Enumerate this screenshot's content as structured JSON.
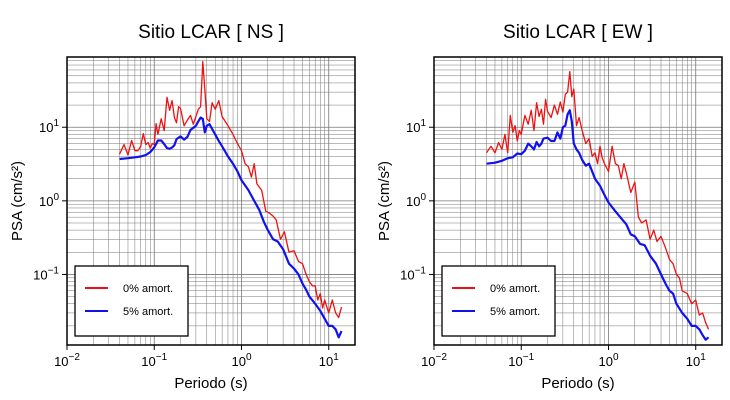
{
  "chart_data": [
    {
      "type": "line",
      "title": "Sitio LCAR [ NS ]",
      "xlabel": "Periodo (s)",
      "ylabel": "PSA (cm/s²)",
      "x_scale": "log",
      "y_scale": "log",
      "xlim": [
        0.01,
        20
      ],
      "ylim": [
        0.011,
        90
      ],
      "x_ticks": [
        {
          "value": 0.01,
          "base": "10",
          "exp": "−2"
        },
        {
          "value": 0.1,
          "base": "10",
          "exp": "−1"
        },
        {
          "value": 1,
          "base": "10",
          "exp": "0"
        },
        {
          "value": 10,
          "base": "10",
          "exp": "1"
        }
      ],
      "y_ticks": [
        {
          "value": 0.1,
          "base": "10",
          "exp": "−1"
        },
        {
          "value": 1,
          "base": "10",
          "exp": "0"
        },
        {
          "value": 10,
          "base": "10",
          "exp": "1"
        }
      ],
      "grid": true,
      "legend_position": "bottom-left",
      "series": [
        {
          "name": "0% amort.",
          "color": "#ee1111",
          "x": [
            0.04,
            0.045,
            0.05,
            0.055,
            0.06,
            0.065,
            0.07,
            0.075,
            0.08,
            0.085,
            0.09,
            0.095,
            0.1,
            0.105,
            0.11,
            0.12,
            0.13,
            0.14,
            0.15,
            0.16,
            0.17,
            0.18,
            0.19,
            0.2,
            0.22,
            0.24,
            0.26,
            0.28,
            0.3,
            0.32,
            0.34,
            0.36,
            0.38,
            0.4,
            0.43,
            0.46,
            0.5,
            0.55,
            0.6,
            0.65,
            0.7,
            0.8,
            0.9,
            1.0,
            1.1,
            1.2,
            1.3,
            1.4,
            1.5,
            1.7,
            1.9,
            2.1,
            2.3,
            2.5,
            2.8,
            3.1,
            3.5,
            4.0,
            4.5,
            5.0,
            5.5,
            6.0,
            6.5,
            7.0,
            7.5,
            8.0,
            8.5,
            9.0,
            10,
            11,
            12,
            13,
            14
          ],
          "y": [
            4.3,
            5.8,
            4.2,
            6.6,
            4.8,
            4.8,
            5.5,
            8.2,
            5.8,
            6.2,
            5.2,
            6.0,
            5.8,
            11.2,
            8.0,
            13.0,
            9.0,
            25.5,
            17.0,
            23.0,
            13.5,
            11.5,
            19.0,
            18.0,
            10.5,
            12.5,
            14.5,
            11.0,
            14.0,
            17.5,
            19.0,
            78.0,
            33.0,
            13.0,
            12.0,
            21.5,
            17.5,
            23.0,
            14.0,
            12.0,
            10.5,
            8.0,
            6.0,
            4.8,
            3.2,
            2.9,
            2.1,
            3.2,
            1.7,
            1.4,
            0.72,
            0.68,
            0.62,
            0.55,
            0.3,
            0.38,
            0.2,
            0.21,
            0.15,
            0.14,
            0.1,
            0.08,
            0.07,
            0.07,
            0.045,
            0.055,
            0.035,
            0.045,
            0.03,
            0.045,
            0.03,
            0.026,
            0.036
          ]
        },
        {
          "name": "5% amort.",
          "color": "#1111ee",
          "x": [
            0.04,
            0.05,
            0.06,
            0.07,
            0.08,
            0.09,
            0.1,
            0.11,
            0.12,
            0.13,
            0.14,
            0.15,
            0.16,
            0.17,
            0.18,
            0.2,
            0.22,
            0.24,
            0.26,
            0.28,
            0.3,
            0.32,
            0.34,
            0.36,
            0.38,
            0.4,
            0.43,
            0.46,
            0.5,
            0.55,
            0.6,
            0.7,
            0.8,
            0.9,
            1.0,
            1.2,
            1.4,
            1.6,
            1.8,
            2.0,
            2.3,
            2.6,
            3.0,
            3.5,
            4.0,
            4.5,
            5.0,
            5.5,
            6.0,
            7.0,
            8.0,
            9.0,
            10,
            11,
            12,
            13,
            14
          ],
          "y": [
            3.7,
            3.8,
            3.9,
            4.0,
            4.2,
            4.6,
            5.3,
            6.6,
            6.6,
            5.9,
            5.2,
            5.1,
            5.3,
            5.7,
            6.9,
            7.5,
            6.8,
            7.4,
            9.2,
            9.8,
            10.5,
            12.0,
            13.5,
            13.0,
            8.5,
            10.5,
            11.0,
            9.5,
            8.0,
            6.5,
            5.5,
            4.0,
            3.2,
            2.5,
            1.9,
            1.4,
            1.0,
            0.75,
            0.52,
            0.4,
            0.3,
            0.28,
            0.22,
            0.14,
            0.12,
            0.1,
            0.075,
            0.062,
            0.05,
            0.04,
            0.032,
            0.025,
            0.02,
            0.02,
            0.018,
            0.014,
            0.017
          ]
        }
      ]
    },
    {
      "type": "line",
      "title": "Sitio LCAR [ EW ]",
      "xlabel": "Periodo (s)",
      "ylabel": "PSA (cm/s²)",
      "x_scale": "log",
      "y_scale": "log",
      "xlim": [
        0.01,
        20
      ],
      "ylim": [
        0.011,
        90
      ],
      "x_ticks": [
        {
          "value": 0.01,
          "base": "10",
          "exp": "−2"
        },
        {
          "value": 0.1,
          "base": "10",
          "exp": "−1"
        },
        {
          "value": 1,
          "base": "10",
          "exp": "0"
        },
        {
          "value": 10,
          "base": "10",
          "exp": "1"
        }
      ],
      "y_ticks": [
        {
          "value": 0.1,
          "base": "10",
          "exp": "−1"
        },
        {
          "value": 1,
          "base": "10",
          "exp": "0"
        },
        {
          "value": 10,
          "base": "10",
          "exp": "1"
        }
      ],
      "grid": true,
      "legend_position": "bottom-left",
      "series": [
        {
          "name": "0% amort.",
          "color": "#ee1111",
          "x": [
            0.04,
            0.045,
            0.05,
            0.055,
            0.06,
            0.065,
            0.07,
            0.075,
            0.08,
            0.085,
            0.09,
            0.095,
            0.1,
            0.11,
            0.12,
            0.13,
            0.14,
            0.15,
            0.16,
            0.17,
            0.18,
            0.19,
            0.2,
            0.22,
            0.24,
            0.26,
            0.28,
            0.3,
            0.32,
            0.34,
            0.36,
            0.38,
            0.4,
            0.43,
            0.46,
            0.5,
            0.55,
            0.6,
            0.65,
            0.7,
            0.75,
            0.8,
            0.85,
            0.9,
            1.0,
            1.1,
            1.2,
            1.3,
            1.4,
            1.5,
            1.6,
            1.8,
            2.0,
            2.2,
            2.4,
            2.7,
            3.0,
            3.3,
            3.6,
            4.0,
            4.5,
            5.0,
            5.5,
            6.0,
            6.5,
            7.0,
            8.0,
            9.0,
            10,
            11,
            12,
            13,
            14
          ],
          "y": [
            4.5,
            5.5,
            4.5,
            6.2,
            5.0,
            8.0,
            4.5,
            14.5,
            8.5,
            10.5,
            6.5,
            9.0,
            8.0,
            14.5,
            11.0,
            17.0,
            9.0,
            21.5,
            14.0,
            17.5,
            11.0,
            24.0,
            16.5,
            13.5,
            20.0,
            15.0,
            22.0,
            16.0,
            28.0,
            30.0,
            57.0,
            26.0,
            33.0,
            10.5,
            13.5,
            9.0,
            6.0,
            7.0,
            4.0,
            4.5,
            3.2,
            5.5,
            3.8,
            3.2,
            2.5,
            5.5,
            3.2,
            3.0,
            2.0,
            3.2,
            2.4,
            1.3,
            1.8,
            0.6,
            0.5,
            0.55,
            0.3,
            0.4,
            0.28,
            0.33,
            0.23,
            0.16,
            0.14,
            0.1,
            0.09,
            0.06,
            0.055,
            0.04,
            0.045,
            0.028,
            0.03,
            0.022,
            0.018
          ]
        },
        {
          "name": "5% amort.",
          "color": "#1111ee",
          "x": [
            0.04,
            0.05,
            0.06,
            0.07,
            0.08,
            0.09,
            0.1,
            0.11,
            0.12,
            0.13,
            0.14,
            0.15,
            0.16,
            0.17,
            0.18,
            0.2,
            0.22,
            0.24,
            0.26,
            0.28,
            0.3,
            0.32,
            0.34,
            0.36,
            0.38,
            0.4,
            0.43,
            0.46,
            0.5,
            0.55,
            0.6,
            0.7,
            0.8,
            0.9,
            1.0,
            1.2,
            1.4,
            1.6,
            1.8,
            2.0,
            2.3,
            2.6,
            3.0,
            3.5,
            4.0,
            4.5,
            5.0,
            5.5,
            6.0,
            7.0,
            8.0,
            9.0,
            10,
            11,
            12,
            13,
            14
          ],
          "y": [
            3.2,
            3.3,
            3.5,
            3.8,
            3.9,
            4.4,
            4.3,
            4.8,
            6.0,
            5.5,
            5.0,
            6.3,
            5.5,
            6.0,
            7.0,
            7.2,
            6.5,
            6.5,
            8.5,
            7.0,
            10.0,
            10.5,
            15.0,
            17.0,
            12.0,
            6.0,
            5.0,
            4.5,
            3.6,
            3.0,
            3.2,
            2.0,
            1.6,
            1.2,
            0.95,
            0.72,
            0.58,
            0.48,
            0.35,
            0.33,
            0.26,
            0.25,
            0.18,
            0.14,
            0.1,
            0.075,
            0.06,
            0.055,
            0.04,
            0.03,
            0.025,
            0.02,
            0.02,
            0.018,
            0.015,
            0.013,
            0.014
          ]
        }
      ]
    }
  ]
}
